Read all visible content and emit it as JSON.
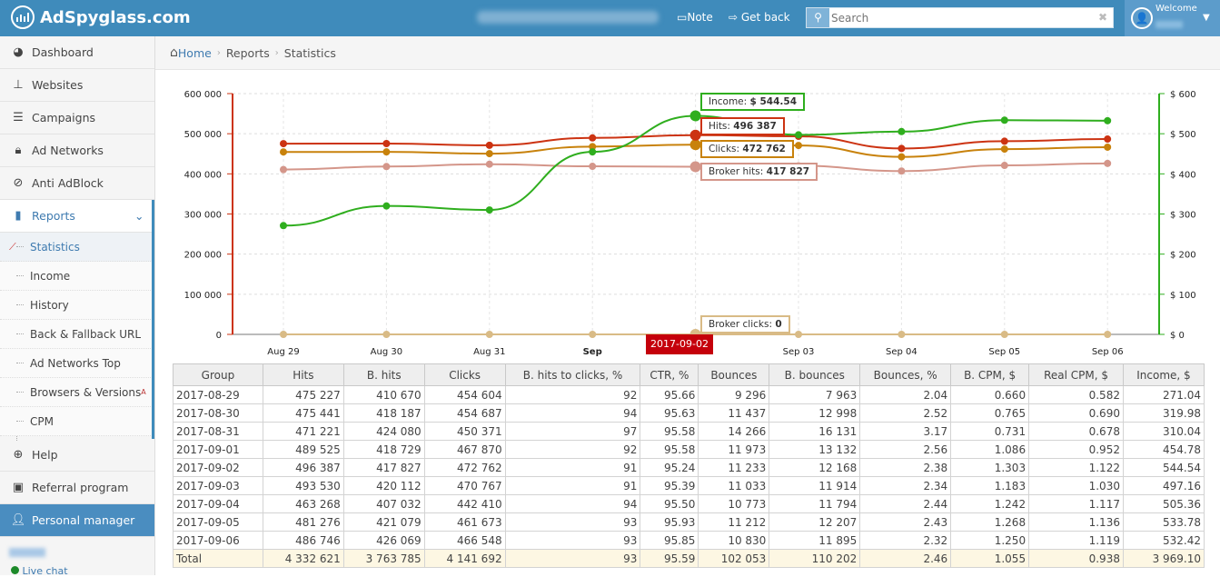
{
  "header": {
    "logo": "AdSpyglass.com",
    "note": "Note",
    "get_back": "Get back",
    "search_placeholder": "Search",
    "welcome": "Welcome"
  },
  "sidebar": {
    "items": [
      {
        "label": "Dashboard",
        "icon": "dashboard-icon"
      },
      {
        "label": "Websites",
        "icon": "sitemap-icon"
      },
      {
        "label": "Campaigns",
        "icon": "sliders-icon"
      },
      {
        "label": "Ad Networks",
        "icon": "lock-icon"
      },
      {
        "label": "Anti AdBlock",
        "icon": "ban-icon"
      },
      {
        "label": "Reports",
        "icon": "bar-chart-icon"
      }
    ],
    "reports_sub": [
      "Statistics",
      "Income",
      "History",
      "Back & Fallback URL",
      "Ad Networks Top",
      "Browsers & Versions",
      "CPM"
    ],
    "browsers_sup": "A",
    "bottom": [
      {
        "label": "Help",
        "icon": "lifebuoy-icon"
      },
      {
        "label": "Referral program",
        "icon": "money-icon"
      },
      {
        "label": "Personal manager",
        "icon": "user-icon"
      }
    ],
    "live_chat": "Live chat"
  },
  "breadcrumb": [
    "Home",
    "Reports",
    "Statistics"
  ],
  "colors": {
    "hits": "#cc3312",
    "clicks": "#c8820c",
    "broker_hits": "#d4968a",
    "income": "#2fae1e",
    "broker_clicks": "#d9bb86",
    "accent": "#3f8bbb"
  },
  "chart_data": {
    "type": "line",
    "categories": [
      "Aug 29",
      "Aug 30",
      "Aug 31",
      "Sep",
      "2017-09-02",
      "Sep 03",
      "Sep 04",
      "Sep 05",
      "Sep 06"
    ],
    "left_ticks": [
      "600 000",
      "500 000",
      "400 000",
      "300 000",
      "200 000",
      "100 000",
      "0"
    ],
    "right_ticks": [
      "$ 600",
      "$ 500",
      "$ 400",
      "$ 300",
      "$ 200",
      "$ 100",
      "$ 0"
    ],
    "ylim": [
      0,
      600000
    ],
    "y2lim": [
      0,
      600
    ],
    "series": [
      {
        "name": "Broker hits",
        "key": "broker_hits",
        "axis": "left",
        "values": [
          410670,
          418187,
          424080,
          418729,
          417827,
          420112,
          407032,
          421079,
          426069
        ]
      },
      {
        "name": "Clicks",
        "key": "clicks",
        "axis": "left",
        "values": [
          454604,
          454687,
          450371,
          467870,
          472762,
          470767,
          442410,
          461673,
          466548
        ]
      },
      {
        "name": "Hits",
        "key": "hits",
        "axis": "left",
        "values": [
          475227,
          475441,
          471221,
          489525,
          496387,
          493530,
          463268,
          481276,
          486746
        ]
      },
      {
        "name": "Broker clicks",
        "key": "broker_clicks",
        "axis": "left",
        "values": [
          0,
          0,
          0,
          0,
          0,
          0,
          0,
          0,
          0
        ]
      },
      {
        "name": "Income",
        "key": "income",
        "axis": "right",
        "values": [
          271.04,
          319.98,
          310.04,
          454.78,
          544.54,
          497.16,
          505.36,
          533.78,
          532.42
        ]
      }
    ],
    "tooltips": {
      "income": {
        "label": "Income:",
        "value": "$ 544.54"
      },
      "hits": {
        "label": "Hits:",
        "value": "496 387"
      },
      "clicks": {
        "label": "Clicks:",
        "value": "472 762"
      },
      "broker_hits": {
        "label": "Broker hits:",
        "value": "417 827"
      },
      "broker_clicks": {
        "label": "Broker clicks:",
        "value": "0"
      }
    }
  },
  "table": {
    "headers": [
      "Group",
      "Hits",
      "B. hits",
      "Clicks",
      "B. hits to clicks, %",
      "CTR, %",
      "Bounces",
      "B. bounces",
      "Bounces, %",
      "B. CPM, $",
      "Real CPM, $",
      "Income, $"
    ],
    "rows": [
      [
        "2017-08-29",
        "475 227",
        "410 670",
        "454 604",
        "92",
        "95.66",
        "9 296",
        "7 963",
        "2.04",
        "0.660",
        "0.582",
        "271.04"
      ],
      [
        "2017-08-30",
        "475 441",
        "418 187",
        "454 687",
        "94",
        "95.63",
        "11 437",
        "12 998",
        "2.52",
        "0.765",
        "0.690",
        "319.98"
      ],
      [
        "2017-08-31",
        "471 221",
        "424 080",
        "450 371",
        "97",
        "95.58",
        "14 266",
        "16 131",
        "3.17",
        "0.731",
        "0.678",
        "310.04"
      ],
      [
        "2017-09-01",
        "489 525",
        "418 729",
        "467 870",
        "92",
        "95.58",
        "11 973",
        "13 132",
        "2.56",
        "1.086",
        "0.952",
        "454.78"
      ],
      [
        "2017-09-02",
        "496 387",
        "417 827",
        "472 762",
        "91",
        "95.24",
        "11 233",
        "12 168",
        "2.38",
        "1.303",
        "1.122",
        "544.54"
      ],
      [
        "2017-09-03",
        "493 530",
        "420 112",
        "470 767",
        "91",
        "95.39",
        "11 033",
        "11 914",
        "2.34",
        "1.183",
        "1.030",
        "497.16"
      ],
      [
        "2017-09-04",
        "463 268",
        "407 032",
        "442 410",
        "94",
        "95.50",
        "10 773",
        "11 794",
        "2.44",
        "1.242",
        "1.117",
        "505.36"
      ],
      [
        "2017-09-05",
        "481 276",
        "421 079",
        "461 673",
        "93",
        "95.93",
        "11 212",
        "12 207",
        "2.43",
        "1.268",
        "1.136",
        "533.78"
      ],
      [
        "2017-09-06",
        "486 746",
        "426 069",
        "466 548",
        "93",
        "95.85",
        "10 830",
        "11 895",
        "2.32",
        "1.250",
        "1.119",
        "532.42"
      ]
    ],
    "total": [
      "Total",
      "4 332 621",
      "3 763 785",
      "4 141 692",
      "93",
      "95.59",
      "102 053",
      "110 202",
      "2.46",
      "1.055",
      "0.938",
      "3 969.10"
    ]
  }
}
